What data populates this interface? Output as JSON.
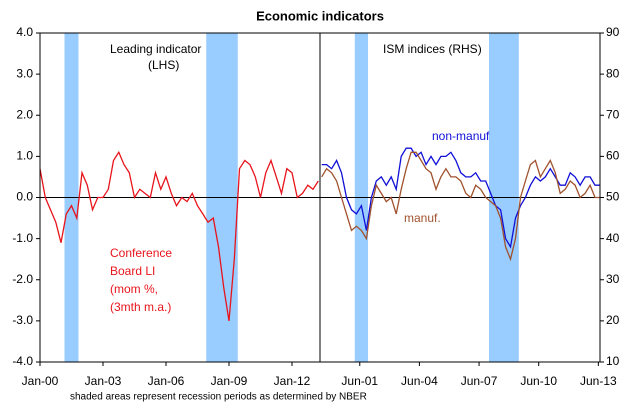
{
  "chart_data": [
    {
      "type": "line",
      "title": "Economic indicators",
      "note": "shaded areas represent recession periods as determined by NBER",
      "annotations": [
        "Leading indicator",
        "(LHS)"
      ],
      "recessions": [
        [
          "2001-03",
          "2001-11"
        ],
        [
          "2007-12",
          "2009-06"
        ]
      ],
      "xlim": [
        "2000-01",
        "2013-05"
      ],
      "xticks": [
        {
          "value": "2000-01",
          "label": "Jan-00"
        },
        {
          "value": "2003-01",
          "label": "Jan-03"
        },
        {
          "value": "2006-01",
          "label": "Jan-06"
        },
        {
          "value": "2009-01",
          "label": "Jan-09"
        },
        {
          "value": "2012-01",
          "label": "Jan-12"
        }
      ],
      "ylim": [
        -4,
        4
      ],
      "yticks": [
        {
          "value": -4,
          "label": "-4.0"
        },
        {
          "value": -3,
          "label": "-3.0"
        },
        {
          "value": -2,
          "label": "-2.0"
        },
        {
          "value": -1,
          "label": "-1.0"
        },
        {
          "value": 0,
          "label": "0.0"
        },
        {
          "value": 1,
          "label": "1.0"
        },
        {
          "value": 2,
          "label": "2.0"
        },
        {
          "value": 3,
          "label": "3.0"
        },
        {
          "value": 4,
          "label": "4.0"
        }
      ],
      "x": [
        "2000-01",
        "2000-04",
        "2000-07",
        "2000-10",
        "2001-01",
        "2001-04",
        "2001-07",
        "2001-10",
        "2002-01",
        "2002-04",
        "2002-07",
        "2002-10",
        "2003-01",
        "2003-04",
        "2003-07",
        "2003-10",
        "2004-01",
        "2004-04",
        "2004-07",
        "2004-10",
        "2005-01",
        "2005-04",
        "2005-07",
        "2005-10",
        "2006-01",
        "2006-04",
        "2006-07",
        "2006-10",
        "2007-01",
        "2007-04",
        "2007-07",
        "2007-10",
        "2008-01",
        "2008-04",
        "2008-07",
        "2008-10",
        "2009-01",
        "2009-04",
        "2009-07",
        "2009-10",
        "2010-01",
        "2010-04",
        "2010-07",
        "2010-10",
        "2011-01",
        "2011-04",
        "2011-07",
        "2011-10",
        "2012-01",
        "2012-04",
        "2012-07",
        "2012-10",
        "2013-01",
        "2013-04"
      ],
      "series": [
        {
          "label_lines": [
            "Conference",
            "Board LI",
            "(mom %,",
            "(3mth m.a.)"
          ],
          "color": "#e8141c",
          "values": [
            0.7,
            0.0,
            -0.3,
            -0.6,
            -1.1,
            -0.4,
            -0.2,
            -0.5,
            0.6,
            0.3,
            -0.3,
            0.0,
            0.0,
            0.2,
            0.9,
            1.1,
            0.8,
            0.6,
            0.0,
            0.2,
            0.1,
            0.0,
            0.6,
            0.2,
            0.5,
            0.1,
            -0.2,
            0.0,
            -0.1,
            0.1,
            -0.2,
            -0.4,
            -0.6,
            -0.5,
            -1.2,
            -2.2,
            -3.0,
            -1.5,
            0.7,
            0.9,
            0.8,
            0.5,
            0.0,
            0.6,
            0.9,
            0.5,
            0.1,
            0.7,
            0.6,
            0.0,
            0.1,
            0.3,
            0.2,
            0.4
          ]
        }
      ]
    },
    {
      "type": "line",
      "annotations": [
        "ISM indices (RHS)"
      ],
      "recessions": [
        [
          "2001-03",
          "2001-11"
        ],
        [
          "2007-12",
          "2009-06"
        ]
      ],
      "xlim": [
        "1999-06",
        "2013-07"
      ],
      "xticks": [
        {
          "value": "2001-06",
          "label": "Jun-01"
        },
        {
          "value": "2004-06",
          "label": "Jun-04"
        },
        {
          "value": "2007-06",
          "label": "Jun-07"
        },
        {
          "value": "2010-06",
          "label": "Jun-10"
        },
        {
          "value": "2013-06",
          "label": "Jun-13"
        }
      ],
      "y2lim": [
        10,
        90
      ],
      "y2ticks": [
        10,
        20,
        30,
        40,
        50,
        60,
        70,
        80,
        90
      ],
      "x": [
        "1999-07",
        "1999-10",
        "2000-01",
        "2000-04",
        "2000-07",
        "2000-10",
        "2001-01",
        "2001-04",
        "2001-07",
        "2001-10",
        "2002-01",
        "2002-04",
        "2002-07",
        "2002-10",
        "2003-01",
        "2003-04",
        "2003-07",
        "2003-10",
        "2004-01",
        "2004-04",
        "2004-07",
        "2004-10",
        "2005-01",
        "2005-04",
        "2005-07",
        "2005-10",
        "2006-01",
        "2006-04",
        "2006-07",
        "2006-10",
        "2007-01",
        "2007-04",
        "2007-07",
        "2007-10",
        "2008-01",
        "2008-04",
        "2008-07",
        "2008-10",
        "2009-01",
        "2009-04",
        "2009-07",
        "2009-10",
        "2010-01",
        "2010-04",
        "2010-07",
        "2010-10",
        "2011-01",
        "2011-04",
        "2011-07",
        "2011-10",
        "2012-01",
        "2012-04",
        "2012-07",
        "2012-10",
        "2013-01",
        "2013-04",
        "2013-07"
      ],
      "series": [
        {
          "name": "non-manuf",
          "color": "#1010d8",
          "axis": "y2",
          "values": [
            58,
            58,
            57,
            59,
            56,
            50,
            47,
            46,
            48,
            42,
            50,
            54,
            55,
            53,
            55,
            52,
            60,
            62,
            62,
            60,
            61,
            58,
            60,
            58,
            60,
            60,
            61,
            59,
            56,
            55,
            55,
            56,
            54,
            54,
            51,
            48,
            47,
            40,
            38,
            45,
            48,
            50,
            53,
            55,
            54,
            55,
            57,
            55,
            53,
            53,
            56,
            55,
            53,
            55,
            55,
            53,
            53
          ]
        },
        {
          "name": "manuf.",
          "color": "#a0522d",
          "axis": "y2",
          "values": [
            55,
            57,
            56,
            54,
            50,
            46,
            42,
            43,
            42,
            40,
            48,
            53,
            51,
            49,
            50,
            46,
            52,
            57,
            61,
            61,
            59,
            57,
            56,
            52,
            55,
            57,
            55,
            55,
            54,
            51,
            50,
            53,
            52,
            50,
            49,
            48,
            45,
            38,
            35,
            40,
            50,
            54,
            58,
            59,
            55,
            57,
            59,
            56,
            51,
            52,
            54,
            53,
            50,
            51,
            53,
            50,
            50
          ]
        }
      ]
    }
  ]
}
